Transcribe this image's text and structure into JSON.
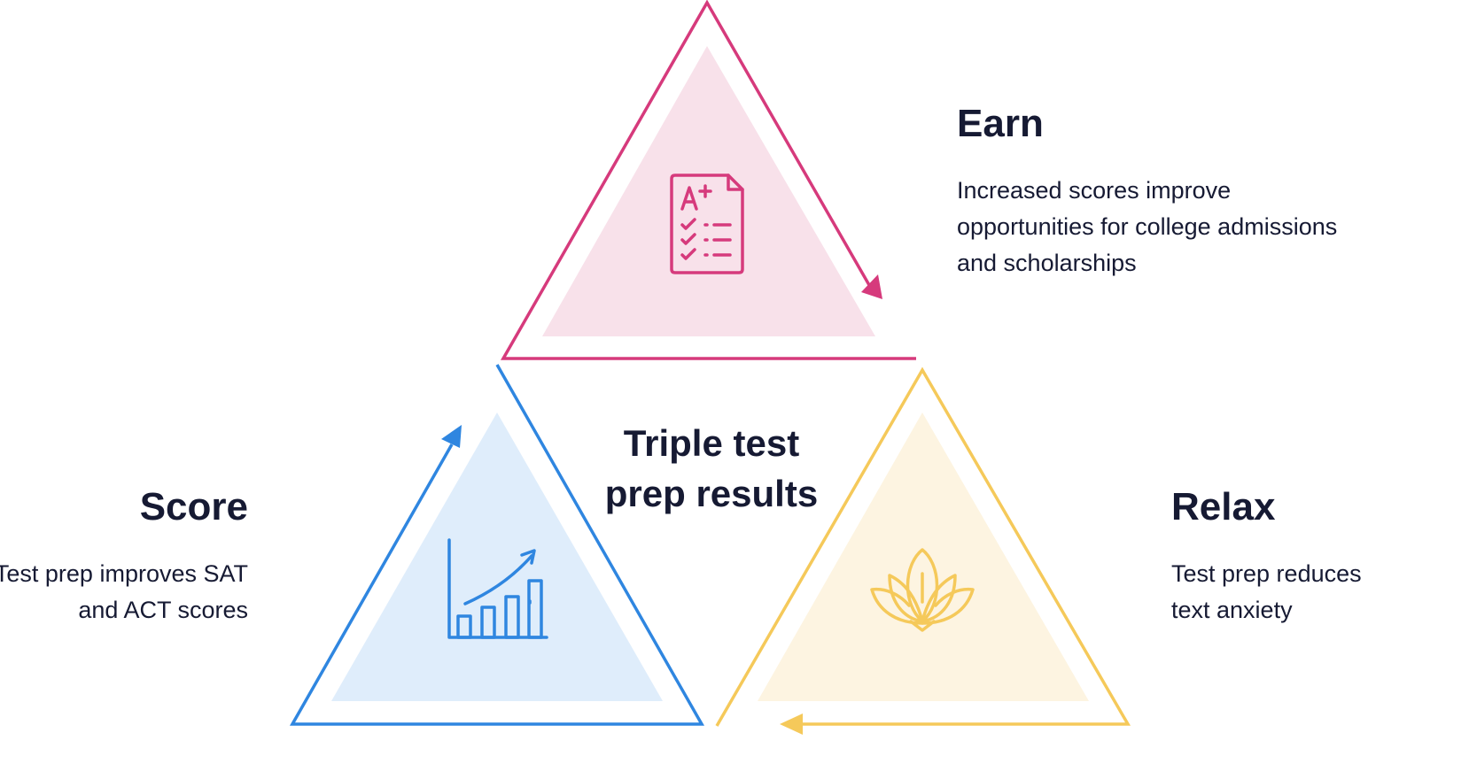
{
  "center_title": "Triple test prep results",
  "sections": {
    "earn": {
      "heading": "Earn",
      "description": "Increased scores improve opportunities for college admissions and scholarships",
      "icon": "grade-report-icon",
      "color": "#d63a7c",
      "fill": "#f8e1ea"
    },
    "score": {
      "heading": "Score",
      "description": "Test prep improves SAT and ACT scores",
      "icon": "bar-chart-growth-icon",
      "color": "#2f86e0",
      "fill": "#dfedfb"
    },
    "relax": {
      "heading": "Relax",
      "description": "Test prep reduces text anxiety",
      "icon": "lotus-icon",
      "color": "#f5c95a",
      "fill": "#fdf4e1"
    }
  }
}
